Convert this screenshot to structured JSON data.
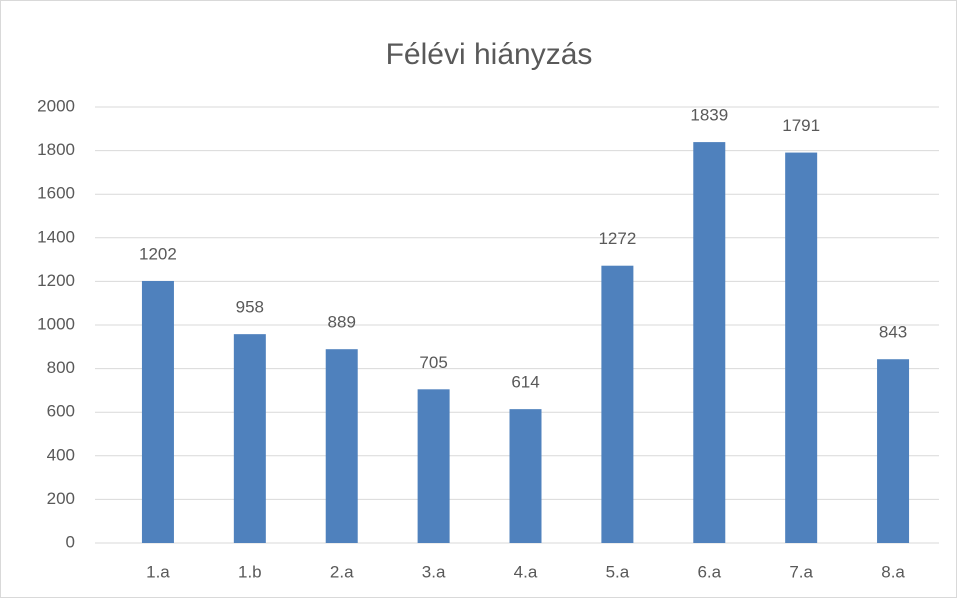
{
  "chart_data": {
    "type": "bar",
    "title": "Félévi hiányzás",
    "categories": [
      "1.a",
      "1.b",
      "2.a",
      "3.a",
      "4.a",
      "5.a",
      "6.a",
      "7.a",
      "8.a"
    ],
    "values": [
      1202,
      958,
      889,
      705,
      614,
      1272,
      1839,
      1791,
      843
    ],
    "color": "#4f81bd",
    "ylim": [
      0,
      2000
    ],
    "yticks": [
      0,
      200,
      400,
      600,
      800,
      1000,
      1200,
      1400,
      1600,
      1800,
      2000
    ],
    "grid": true
  }
}
